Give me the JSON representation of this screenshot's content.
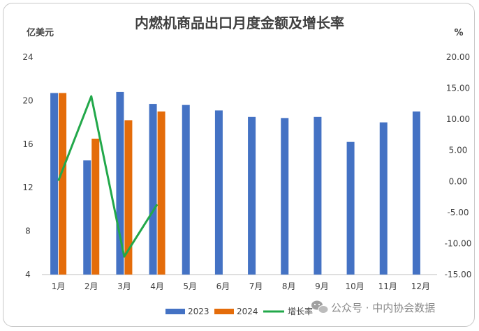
{
  "chart_data": {
    "type": "bar",
    "title": "内燃机商品出口月度金额及增长率",
    "ylabel_left": "亿美元",
    "ylabel_right": "%",
    "categories": [
      "1月",
      "2月",
      "3月",
      "4月",
      "5月",
      "6月",
      "7月",
      "8月",
      "9月",
      "10月",
      "11月",
      "12月"
    ],
    "ylim_left": [
      4,
      24
    ],
    "yticks_left": [
      "4",
      "8",
      "12",
      "16",
      "20",
      "24"
    ],
    "ylim_right": [
      -15,
      20
    ],
    "yticks_right": [
      "-15.00",
      "-10.00",
      "-5.00",
      "0.00",
      "5.00",
      "10.00",
      "15.00",
      "20.00"
    ],
    "series": [
      {
        "name": "2023",
        "kind": "bar",
        "color": "#4472c4",
        "values": [
          20.7,
          14.5,
          20.8,
          19.7,
          19.6,
          19.1,
          18.5,
          18.4,
          18.5,
          16.2,
          18.0,
          19.0
        ]
      },
      {
        "name": "2024",
        "kind": "bar",
        "color": "#e46c0a",
        "values": [
          20.7,
          16.5,
          18.2,
          19.0,
          null,
          null,
          null,
          null,
          null,
          null,
          null,
          null
        ]
      },
      {
        "name": "增长率",
        "kind": "line",
        "axis": "right",
        "color": "#22a84a",
        "values": [
          0.1,
          13.7,
          -12.1,
          -3.7,
          null,
          null,
          null,
          null,
          null,
          null,
          null,
          null
        ]
      }
    ],
    "legend_position": "bottom",
    "grid": false
  },
  "watermark": {
    "icon": "wechat-icon",
    "text": "公众号 · 中内协会数据"
  }
}
